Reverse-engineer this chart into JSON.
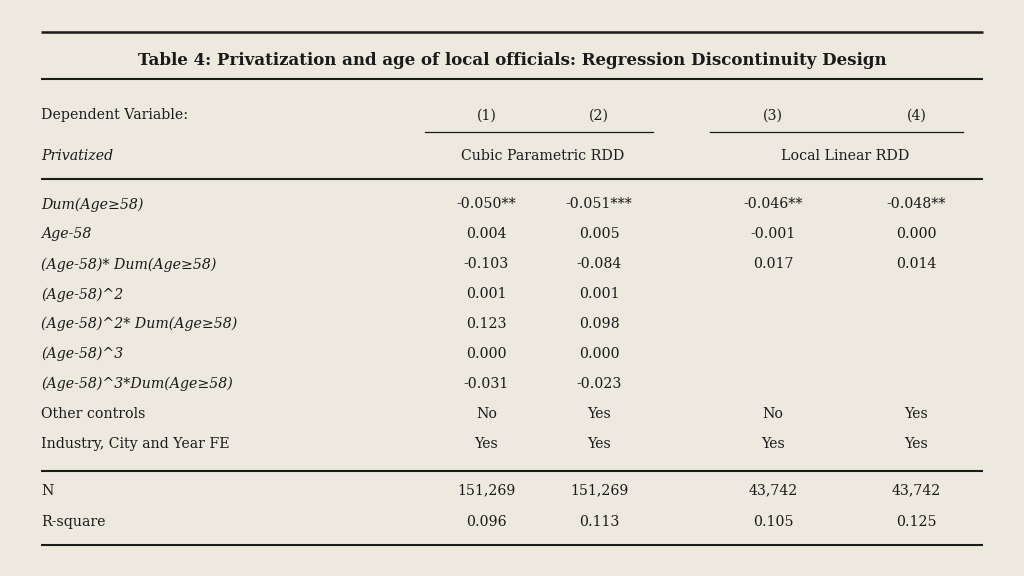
{
  "title": "Table 4: Privatization and age of local officials: Regression Discontinuity Design",
  "background_color": "#ede9df",
  "subheader_left": "Dependent Variable:",
  "subheader_italic": "Privatized",
  "subheader_col12": "Cubic Parametric RDD",
  "subheader_col34": "Local Linear RDD",
  "col_x": {
    "label": 0.04,
    "c1": 0.475,
    "c2": 0.585,
    "c3": 0.755,
    "c4": 0.895
  },
  "col_underline_12": [
    0.415,
    0.638
  ],
  "col_underline_34": [
    0.693,
    0.94
  ],
  "rows": [
    {
      "label": "Dum(Age≥58)",
      "italic": true,
      "c1": "-0.050**",
      "c2": "-0.051***",
      "c3": "-0.046**",
      "c4": "-0.048**"
    },
    {
      "label": "Age-58",
      "italic": true,
      "c1": "0.004",
      "c2": "0.005",
      "c3": "-0.001",
      "c4": "0.000"
    },
    {
      "label": "(Age-58)* Dum(Age≥58)",
      "italic": true,
      "c1": "-0.103",
      "c2": "-0.084",
      "c3": "0.017",
      "c4": "0.014"
    },
    {
      "label": "(Age-58)^2",
      "italic": true,
      "c1": "0.001",
      "c2": "0.001",
      "c3": "",
      "c4": ""
    },
    {
      "label": "(Age-58)^2* Dum(Age≥58)",
      "italic": true,
      "c1": "0.123",
      "c2": "0.098",
      "c3": "",
      "c4": ""
    },
    {
      "label": "(Age-58)^3",
      "italic": true,
      "c1": "0.000",
      "c2": "0.000",
      "c3": "",
      "c4": ""
    },
    {
      "label": "(Age-58)^3*Dum(Age≥58)",
      "italic": true,
      "c1": "-0.031",
      "c2": "-0.023",
      "c3": "",
      "c4": ""
    },
    {
      "label": "Other controls",
      "italic": false,
      "c1": "No",
      "c2": "Yes",
      "c3": "No",
      "c4": "Yes"
    },
    {
      "label": "Industry, City and Year FE",
      "italic": false,
      "c1": "Yes",
      "c2": "Yes",
      "c3": "Yes",
      "c4": "Yes"
    }
  ],
  "bottom_rows": [
    {
      "label": "N",
      "c1": "151,269",
      "c2": "151,269",
      "c3": "43,742",
      "c4": "43,742"
    },
    {
      "label": "R-square",
      "c1": "0.096",
      "c2": "0.113",
      "c3": "0.105",
      "c4": "0.125"
    }
  ],
  "fontsize_title": 12,
  "fontsize_body": 10.2
}
